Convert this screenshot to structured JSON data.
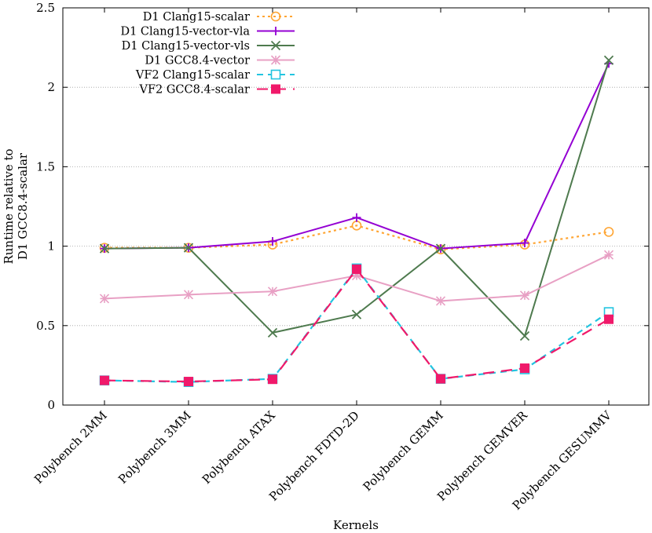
{
  "chart_data": {
    "type": "line",
    "xlabel": "Kernels",
    "ylabel_lines": [
      "Runtime relative to",
      "D1 GCC8.4-scalar"
    ],
    "categories": [
      "Polybench 2MM",
      "Polybench 3MM",
      "Polybench ATAX",
      "Polybench FDTD-2D",
      "Polybench GEMM",
      "Polybench GEMVER",
      "Polybench GESUMMV"
    ],
    "ylim": [
      0,
      2.5
    ],
    "yticks": [
      0,
      0.5,
      1,
      1.5,
      2,
      2.5
    ],
    "ytick_labels": [
      "0",
      "0.5",
      "1",
      "1.5",
      "2",
      "2.5"
    ],
    "grid": "horizontal",
    "legend_position": "top-left",
    "series": [
      {
        "name": "D1 Clang15-scalar",
        "color": "#ffa533",
        "dash": "dotted",
        "marker": "open-circle",
        "values": [
          0.99,
          0.99,
          1.01,
          1.13,
          0.98,
          1.01,
          1.09
        ]
      },
      {
        "name": "D1 Clang15-vector-vla",
        "color": "#9400d3",
        "dash": "solid",
        "marker": "plus",
        "values": [
          0.985,
          0.99,
          1.03,
          1.18,
          0.985,
          1.02,
          2.15
        ]
      },
      {
        "name": "D1 Clang15-vector-vls",
        "color": "#4e7a4e",
        "dash": "solid",
        "marker": "cross",
        "values": [
          0.985,
          0.99,
          0.455,
          0.57,
          0.985,
          0.435,
          2.17
        ]
      },
      {
        "name": "D1 GCC8.4-vector",
        "color": "#e8a0c4",
        "dash": "solid",
        "marker": "star",
        "values": [
          0.67,
          0.695,
          0.715,
          0.815,
          0.655,
          0.69,
          0.945
        ]
      },
      {
        "name": "VF2 Clang15-scalar",
        "color": "#22c4e0",
        "dash": "dashed",
        "marker": "open-square",
        "values": [
          0.155,
          0.145,
          0.165,
          0.86,
          0.165,
          0.225,
          0.585
        ]
      },
      {
        "name": "VF2 GCC8.4-scalar",
        "color": "#f0196a",
        "dash": "long-dashed",
        "marker": "filled-square",
        "values": [
          0.155,
          0.148,
          0.162,
          0.855,
          0.165,
          0.232,
          0.54
        ]
      }
    ]
  }
}
